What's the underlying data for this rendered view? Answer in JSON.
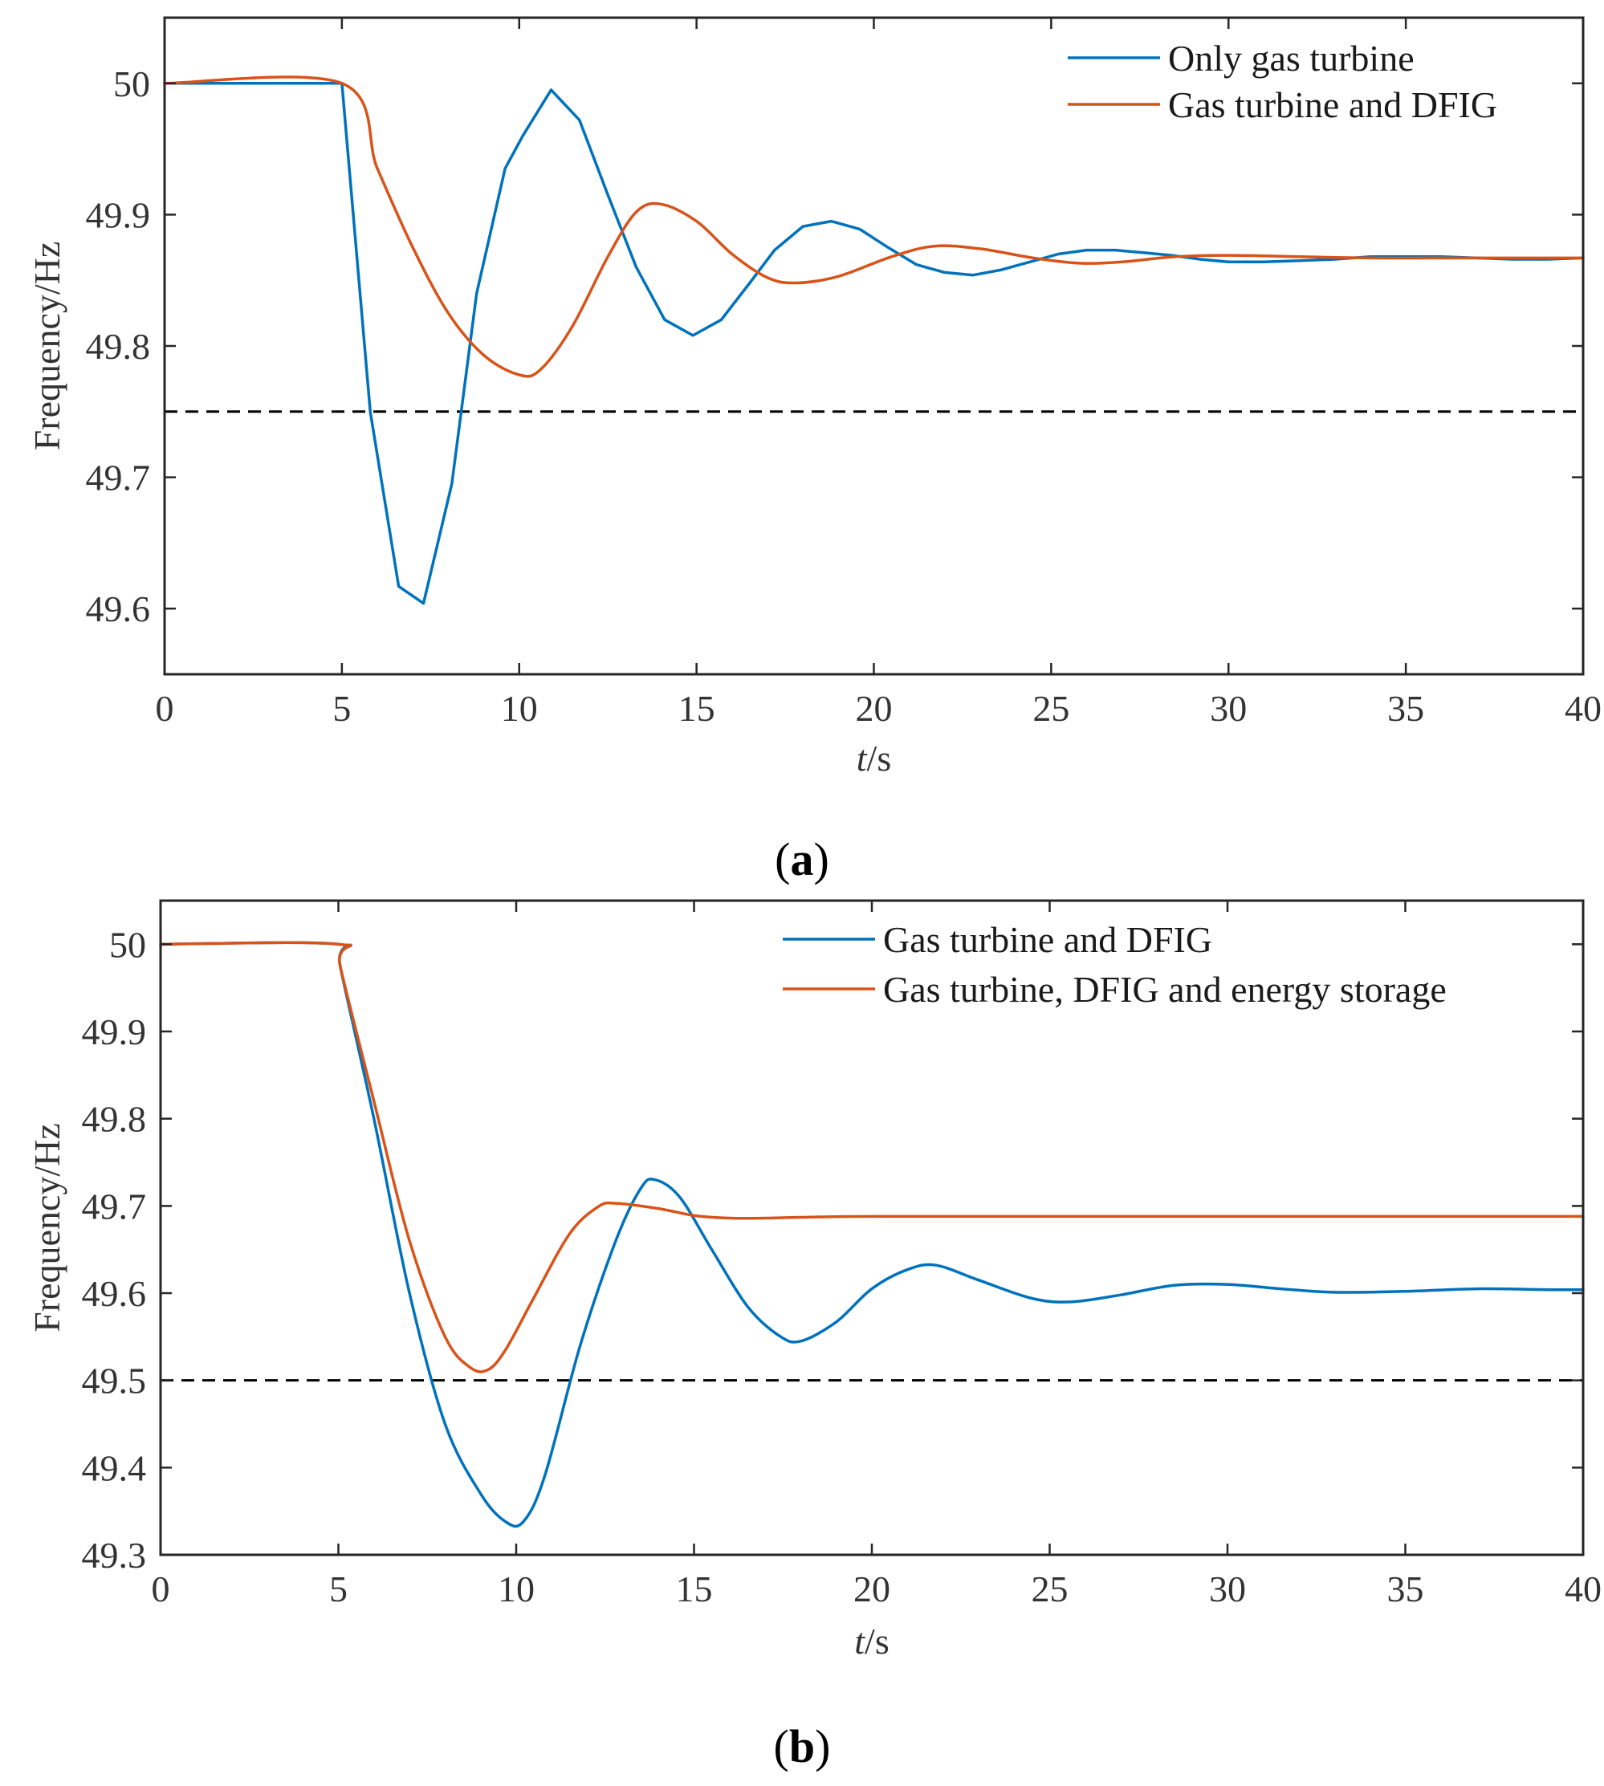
{
  "chart_data": [
    {
      "type": "line",
      "panel_label": "a",
      "xlabel_italic": "t",
      "xlabel_unit": "/s",
      "ylabel": "Frequency/Hz",
      "xlim": [
        0,
        40
      ],
      "ylim": [
        49.55,
        50.05
      ],
      "xticks": [
        "0",
        "5",
        "10",
        "15",
        "20",
        "25",
        "30",
        "35",
        "40"
      ],
      "yticks": [
        "49.6",
        "49.7",
        "49.8",
        "49.9",
        "50"
      ],
      "ytick_values": [
        49.6,
        49.7,
        49.8,
        49.9,
        50.0
      ],
      "xtick_values": [
        0,
        5,
        10,
        15,
        20,
        25,
        30,
        35,
        40
      ],
      "reference_line": 49.75,
      "legend_position": "top-right",
      "series": [
        {
          "name": "Only gas turbine",
          "color": "#0072BD",
          "smooth": false,
          "points": [
            [
              0,
              50.0
            ],
            [
              5.0,
              50.0
            ],
            [
              5.8,
              49.75
            ],
            [
              6.6,
              49.617
            ],
            [
              7.3,
              49.604
            ],
            [
              8.1,
              49.695
            ],
            [
              8.8,
              49.84
            ],
            [
              9.6,
              49.935
            ],
            [
              10.1,
              49.96
            ],
            [
              10.9,
              49.995
            ],
            [
              11.7,
              49.972
            ],
            [
              12.5,
              49.915
            ],
            [
              13.3,
              49.86
            ],
            [
              14.1,
              49.82
            ],
            [
              14.9,
              49.808
            ],
            [
              15.7,
              49.82
            ],
            [
              16.5,
              49.848
            ],
            [
              17.2,
              49.873
            ],
            [
              18.0,
              49.891
            ],
            [
              18.8,
              49.895
            ],
            [
              19.6,
              49.889
            ],
            [
              20.4,
              49.875
            ],
            [
              21.2,
              49.862
            ],
            [
              22.0,
              49.856
            ],
            [
              22.8,
              49.854
            ],
            [
              23.6,
              49.858
            ],
            [
              24.4,
              49.864
            ],
            [
              25.2,
              49.87
            ],
            [
              26.0,
              49.873
            ],
            [
              26.8,
              49.873
            ],
            [
              27.6,
              49.871
            ],
            [
              28.4,
              49.869
            ],
            [
              29.2,
              49.866
            ],
            [
              30.0,
              49.864
            ],
            [
              31.0,
              49.864
            ],
            [
              32.0,
              49.865
            ],
            [
              33.0,
              49.866
            ],
            [
              34.0,
              49.868
            ],
            [
              35.0,
              49.868
            ],
            [
              36.0,
              49.868
            ],
            [
              37.0,
              49.867
            ],
            [
              38.0,
              49.866
            ],
            [
              39.0,
              49.866
            ],
            [
              40.0,
              49.867
            ]
          ]
        },
        {
          "name": "Gas turbine and DFIG",
          "color": "#D95319",
          "smooth": true,
          "points": [
            [
              0,
              50.0
            ],
            [
              5.0,
              50.0
            ],
            [
              6.0,
              49.935
            ],
            [
              7.0,
              49.875
            ],
            [
              8.0,
              49.825
            ],
            [
              9.0,
              49.793
            ],
            [
              10.0,
              49.778
            ],
            [
              10.6,
              49.782
            ],
            [
              11.5,
              49.815
            ],
            [
              12.5,
              49.868
            ],
            [
              13.3,
              49.902
            ],
            [
              14.0,
              49.908
            ],
            [
              15.0,
              49.895
            ],
            [
              16.0,
              49.87
            ],
            [
              17.0,
              49.852
            ],
            [
              17.8,
              49.848
            ],
            [
              19.0,
              49.853
            ],
            [
              20.5,
              49.868
            ],
            [
              21.7,
              49.876
            ],
            [
              23.0,
              49.874
            ],
            [
              24.5,
              49.867
            ],
            [
              25.8,
              49.863
            ],
            [
              27.0,
              49.864
            ],
            [
              28.5,
              49.868
            ],
            [
              30.0,
              49.869
            ],
            [
              32.0,
              49.868
            ],
            [
              34.0,
              49.867
            ],
            [
              36.0,
              49.867
            ],
            [
              38.0,
              49.867
            ],
            [
              40.0,
              49.867
            ]
          ]
        }
      ]
    },
    {
      "type": "line",
      "panel_label": "b",
      "xlabel_italic": "t",
      "xlabel_unit": "/s",
      "ylabel": "Frequency/Hz",
      "xlim": [
        0,
        40
      ],
      "ylim": [
        49.3,
        50.05
      ],
      "xticks": [
        "0",
        "5",
        "10",
        "15",
        "20",
        "25",
        "30",
        "35",
        "40"
      ],
      "yticks": [
        "49.3",
        "49.4",
        "49.5",
        "49.6",
        "49.7",
        "49.8",
        "49.9",
        "50"
      ],
      "ytick_values": [
        49.3,
        49.4,
        49.5,
        49.6,
        49.7,
        49.8,
        49.9,
        50.0
      ],
      "xtick_values": [
        0,
        5,
        10,
        15,
        20,
        25,
        30,
        35,
        40
      ],
      "reference_line": 49.5,
      "legend_position": "top-right",
      "series": [
        {
          "name": "Gas turbine and DFIG",
          "color": "#0072BD",
          "smooth": true,
          "points": [
            [
              0,
              50.0
            ],
            [
              5.0,
              50.0
            ],
            [
              5.05,
              49.975
            ],
            [
              6.0,
              49.8
            ],
            [
              7.0,
              49.6
            ],
            [
              8.0,
              49.45
            ],
            [
              9.0,
              49.37
            ],
            [
              9.7,
              49.338
            ],
            [
              10.2,
              49.338
            ],
            [
              10.8,
              49.39
            ],
            [
              11.8,
              49.54
            ],
            [
              12.8,
              49.66
            ],
            [
              13.5,
              49.72
            ],
            [
              13.9,
              49.73
            ],
            [
              14.6,
              49.71
            ],
            [
              15.5,
              49.65
            ],
            [
              16.5,
              49.585
            ],
            [
              17.4,
              49.551
            ],
            [
              18.0,
              49.545
            ],
            [
              19.0,
              49.567
            ],
            [
              20.0,
              49.605
            ],
            [
              21.0,
              49.627
            ],
            [
              21.8,
              49.632
            ],
            [
              23.0,
              49.615
            ],
            [
              24.5,
              49.594
            ],
            [
              25.6,
              49.59
            ],
            [
              27.0,
              49.598
            ],
            [
              28.5,
              49.609
            ],
            [
              30.0,
              49.61
            ],
            [
              31.5,
              49.605
            ],
            [
              33.0,
              49.601
            ],
            [
              35.0,
              49.602
            ],
            [
              37.0,
              49.605
            ],
            [
              39.0,
              49.604
            ],
            [
              40.0,
              49.604
            ]
          ]
        },
        {
          "name": "Gas turbine, DFIG and energy storage",
          "color": "#D95319",
          "smooth": true,
          "points": [
            [
              0,
              50.0
            ],
            [
              5.0,
              50.0
            ],
            [
              5.05,
              49.975
            ],
            [
              6.0,
              49.82
            ],
            [
              7.0,
              49.66
            ],
            [
              8.0,
              49.55
            ],
            [
              8.7,
              49.515
            ],
            [
              9.2,
              49.512
            ],
            [
              9.7,
              49.535
            ],
            [
              10.5,
              49.595
            ],
            [
              11.5,
              49.668
            ],
            [
              12.3,
              49.699
            ],
            [
              12.8,
              49.703
            ],
            [
              14.0,
              49.697
            ],
            [
              15.0,
              49.689
            ],
            [
              16.0,
              49.686
            ],
            [
              17.0,
              49.686
            ],
            [
              18.0,
              49.687
            ],
            [
              20.0,
              49.688
            ],
            [
              25.0,
              49.688
            ],
            [
              30.0,
              49.688
            ],
            [
              35.0,
              49.688
            ],
            [
              40.0,
              49.688
            ]
          ]
        }
      ]
    }
  ]
}
